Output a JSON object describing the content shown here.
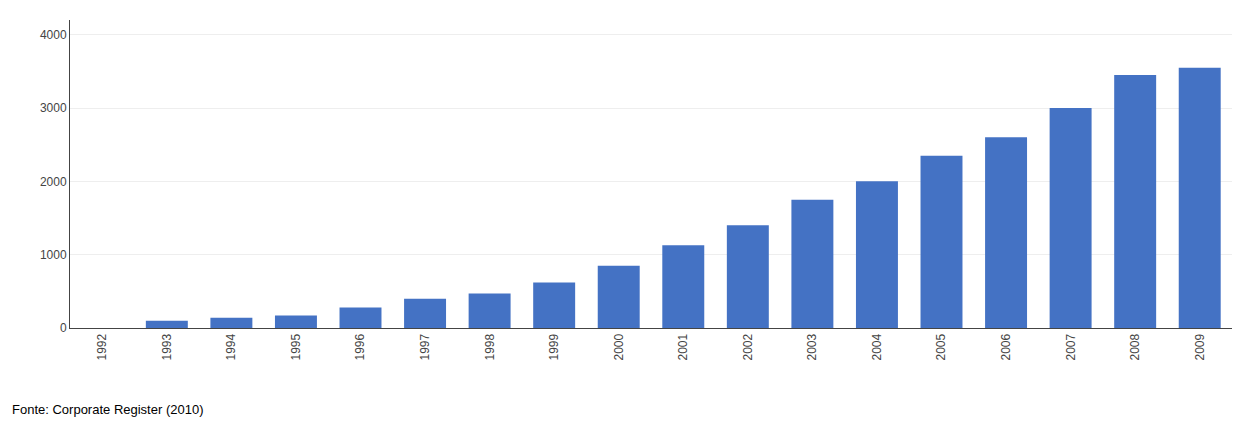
{
  "chart_data": {
    "type": "bar",
    "categories": [
      "1992",
      "1993",
      "1994",
      "1995",
      "1996",
      "1997",
      "1998",
      "1999",
      "2000",
      "2001",
      "2002",
      "2003",
      "2004",
      "2005",
      "2006",
      "2007",
      "2008",
      "2009"
    ],
    "values": [
      0,
      100,
      140,
      170,
      280,
      400,
      470,
      620,
      850,
      1130,
      1400,
      1750,
      2000,
      2350,
      2600,
      3000,
      3450,
      3550
    ],
    "color": "#4472C4",
    "ylim": [
      0,
      4200
    ],
    "yticks": [
      0,
      1000,
      2000,
      3000,
      4000
    ],
    "grid": true,
    "caption": "Fonte: Corporate Register (2010)"
  }
}
